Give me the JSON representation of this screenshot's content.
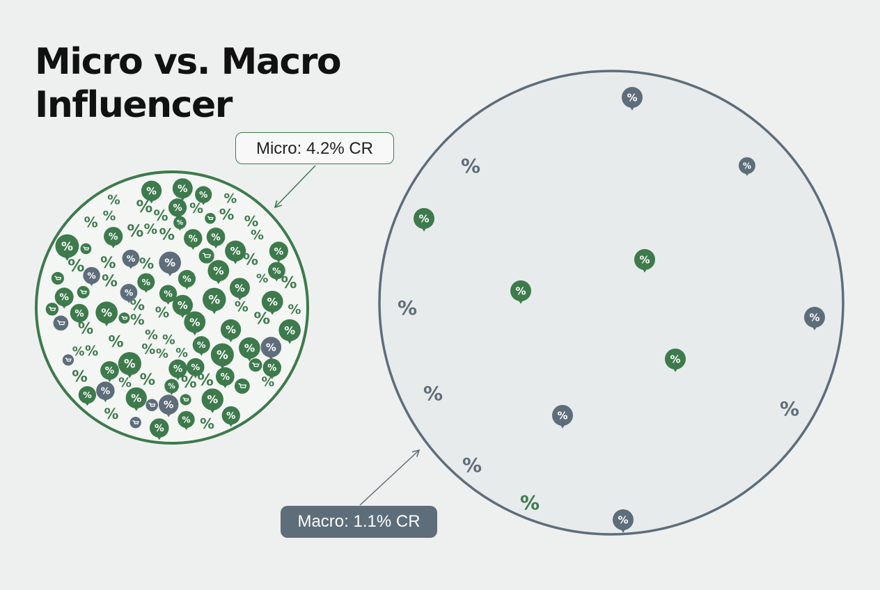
{
  "title": {
    "line1": "Micro vs. Macro",
    "line2": "Influencer"
  },
  "micro": {
    "label": "Micro: 4.2% CR",
    "symbol": "%",
    "color": "#3d7a4c",
    "circle_color": "#3d7a4c"
  },
  "macro": {
    "label": "Macro: 1.1% CR",
    "symbol": "%",
    "color": "#5d6d7a",
    "circle_color": "#5d6d7a"
  },
  "colors": {
    "green": "#3d7a4c",
    "slate": "#5d6d7a",
    "background": "#eef0ef"
  },
  "icons": [
    "percent-badge-icon",
    "cart-icon",
    "percent-sign-icon"
  ]
}
